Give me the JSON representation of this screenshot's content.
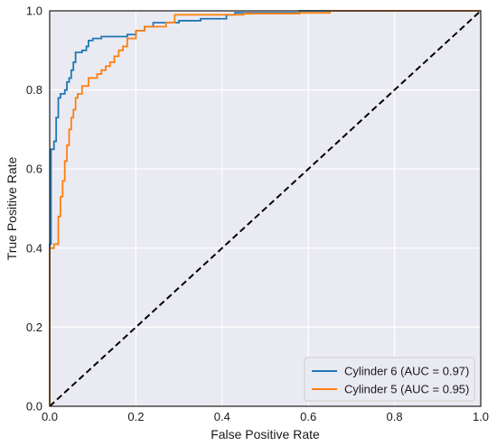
{
  "chart_data": {
    "type": "line",
    "xlabel": "False Positive Rate",
    "ylabel": "True Positive Rate",
    "xlim": [
      0.0,
      1.0
    ],
    "ylim": [
      0.0,
      1.0
    ],
    "x_ticks": [
      "0.0",
      "0.2",
      "0.4",
      "0.6",
      "0.8",
      "1.0"
    ],
    "y_ticks": [
      "0.0",
      "0.2",
      "0.4",
      "0.6",
      "0.8",
      "1.0"
    ],
    "grid": true,
    "background": "#eaeaf2",
    "grid_color": "#ffffff",
    "legend_position": "lower-right",
    "series": [
      {
        "name": "Cylinder 6 (AUC = 0.97)",
        "color": "#1f77b4",
        "points": [
          [
            0.0,
            0.0
          ],
          [
            0.0,
            0.41
          ],
          [
            0.003,
            0.41
          ],
          [
            0.003,
            0.65
          ],
          [
            0.01,
            0.65
          ],
          [
            0.01,
            0.67
          ],
          [
            0.015,
            0.67
          ],
          [
            0.015,
            0.73
          ],
          [
            0.02,
            0.73
          ],
          [
            0.02,
            0.78
          ],
          [
            0.025,
            0.78
          ],
          [
            0.025,
            0.79
          ],
          [
            0.035,
            0.79
          ],
          [
            0.035,
            0.8
          ],
          [
            0.04,
            0.8
          ],
          [
            0.04,
            0.82
          ],
          [
            0.045,
            0.82
          ],
          [
            0.045,
            0.83
          ],
          [
            0.05,
            0.83
          ],
          [
            0.05,
            0.85
          ],
          [
            0.055,
            0.85
          ],
          [
            0.055,
            0.87
          ],
          [
            0.06,
            0.87
          ],
          [
            0.06,
            0.895
          ],
          [
            0.075,
            0.895
          ],
          [
            0.075,
            0.9
          ],
          [
            0.085,
            0.9
          ],
          [
            0.085,
            0.91
          ],
          [
            0.09,
            0.91
          ],
          [
            0.09,
            0.925
          ],
          [
            0.1,
            0.925
          ],
          [
            0.1,
            0.93
          ],
          [
            0.12,
            0.93
          ],
          [
            0.12,
            0.935
          ],
          [
            0.18,
            0.935
          ],
          [
            0.18,
            0.94
          ],
          [
            0.2,
            0.94
          ],
          [
            0.2,
            0.95
          ],
          [
            0.22,
            0.95
          ],
          [
            0.22,
            0.96
          ],
          [
            0.24,
            0.96
          ],
          [
            0.24,
            0.97
          ],
          [
            0.3,
            0.97
          ],
          [
            0.3,
            0.975
          ],
          [
            0.35,
            0.975
          ],
          [
            0.35,
            0.98
          ],
          [
            0.41,
            0.98
          ],
          [
            0.41,
            0.99
          ],
          [
            0.43,
            0.99
          ],
          [
            0.43,
            0.995
          ],
          [
            0.5,
            0.995
          ],
          [
            0.58,
            0.995
          ],
          [
            0.58,
            1.0
          ],
          [
            1.0,
            1.0
          ]
        ]
      },
      {
        "name": "Cylinder 5 (AUC = 0.95)",
        "color": "#ff7f0e",
        "points": [
          [
            0.0,
            0.0
          ],
          [
            0.0,
            0.4
          ],
          [
            0.01,
            0.4
          ],
          [
            0.01,
            0.41
          ],
          [
            0.02,
            0.41
          ],
          [
            0.02,
            0.48
          ],
          [
            0.025,
            0.48
          ],
          [
            0.025,
            0.53
          ],
          [
            0.03,
            0.53
          ],
          [
            0.03,
            0.57
          ],
          [
            0.035,
            0.57
          ],
          [
            0.035,
            0.62
          ],
          [
            0.04,
            0.62
          ],
          [
            0.04,
            0.66
          ],
          [
            0.045,
            0.66
          ],
          [
            0.045,
            0.7
          ],
          [
            0.05,
            0.7
          ],
          [
            0.05,
            0.73
          ],
          [
            0.055,
            0.73
          ],
          [
            0.055,
            0.75
          ],
          [
            0.06,
            0.75
          ],
          [
            0.06,
            0.78
          ],
          [
            0.065,
            0.78
          ],
          [
            0.065,
            0.79
          ],
          [
            0.075,
            0.79
          ],
          [
            0.075,
            0.81
          ],
          [
            0.09,
            0.81
          ],
          [
            0.09,
            0.83
          ],
          [
            0.11,
            0.83
          ],
          [
            0.11,
            0.84
          ],
          [
            0.12,
            0.84
          ],
          [
            0.12,
            0.85
          ],
          [
            0.13,
            0.85
          ],
          [
            0.13,
            0.86
          ],
          [
            0.14,
            0.86
          ],
          [
            0.14,
            0.87
          ],
          [
            0.15,
            0.87
          ],
          [
            0.15,
            0.885
          ],
          [
            0.16,
            0.885
          ],
          [
            0.16,
            0.9
          ],
          [
            0.17,
            0.9
          ],
          [
            0.17,
            0.91
          ],
          [
            0.18,
            0.91
          ],
          [
            0.18,
            0.93
          ],
          [
            0.2,
            0.93
          ],
          [
            0.2,
            0.95
          ],
          [
            0.22,
            0.95
          ],
          [
            0.22,
            0.96
          ],
          [
            0.27,
            0.96
          ],
          [
            0.27,
            0.97
          ],
          [
            0.29,
            0.97
          ],
          [
            0.29,
            0.99
          ],
          [
            0.35,
            0.99
          ],
          [
            0.45,
            0.99
          ],
          [
            0.45,
            0.993
          ],
          [
            0.58,
            0.993
          ],
          [
            0.58,
            0.995
          ],
          [
            0.65,
            0.995
          ],
          [
            0.65,
            1.0
          ],
          [
            1.0,
            1.0
          ]
        ]
      }
    ],
    "reference_line": {
      "points": [
        [
          0.0,
          0.0
        ],
        [
          1.0,
          1.0
        ]
      ],
      "color": "#000000",
      "style": "dashed"
    }
  }
}
